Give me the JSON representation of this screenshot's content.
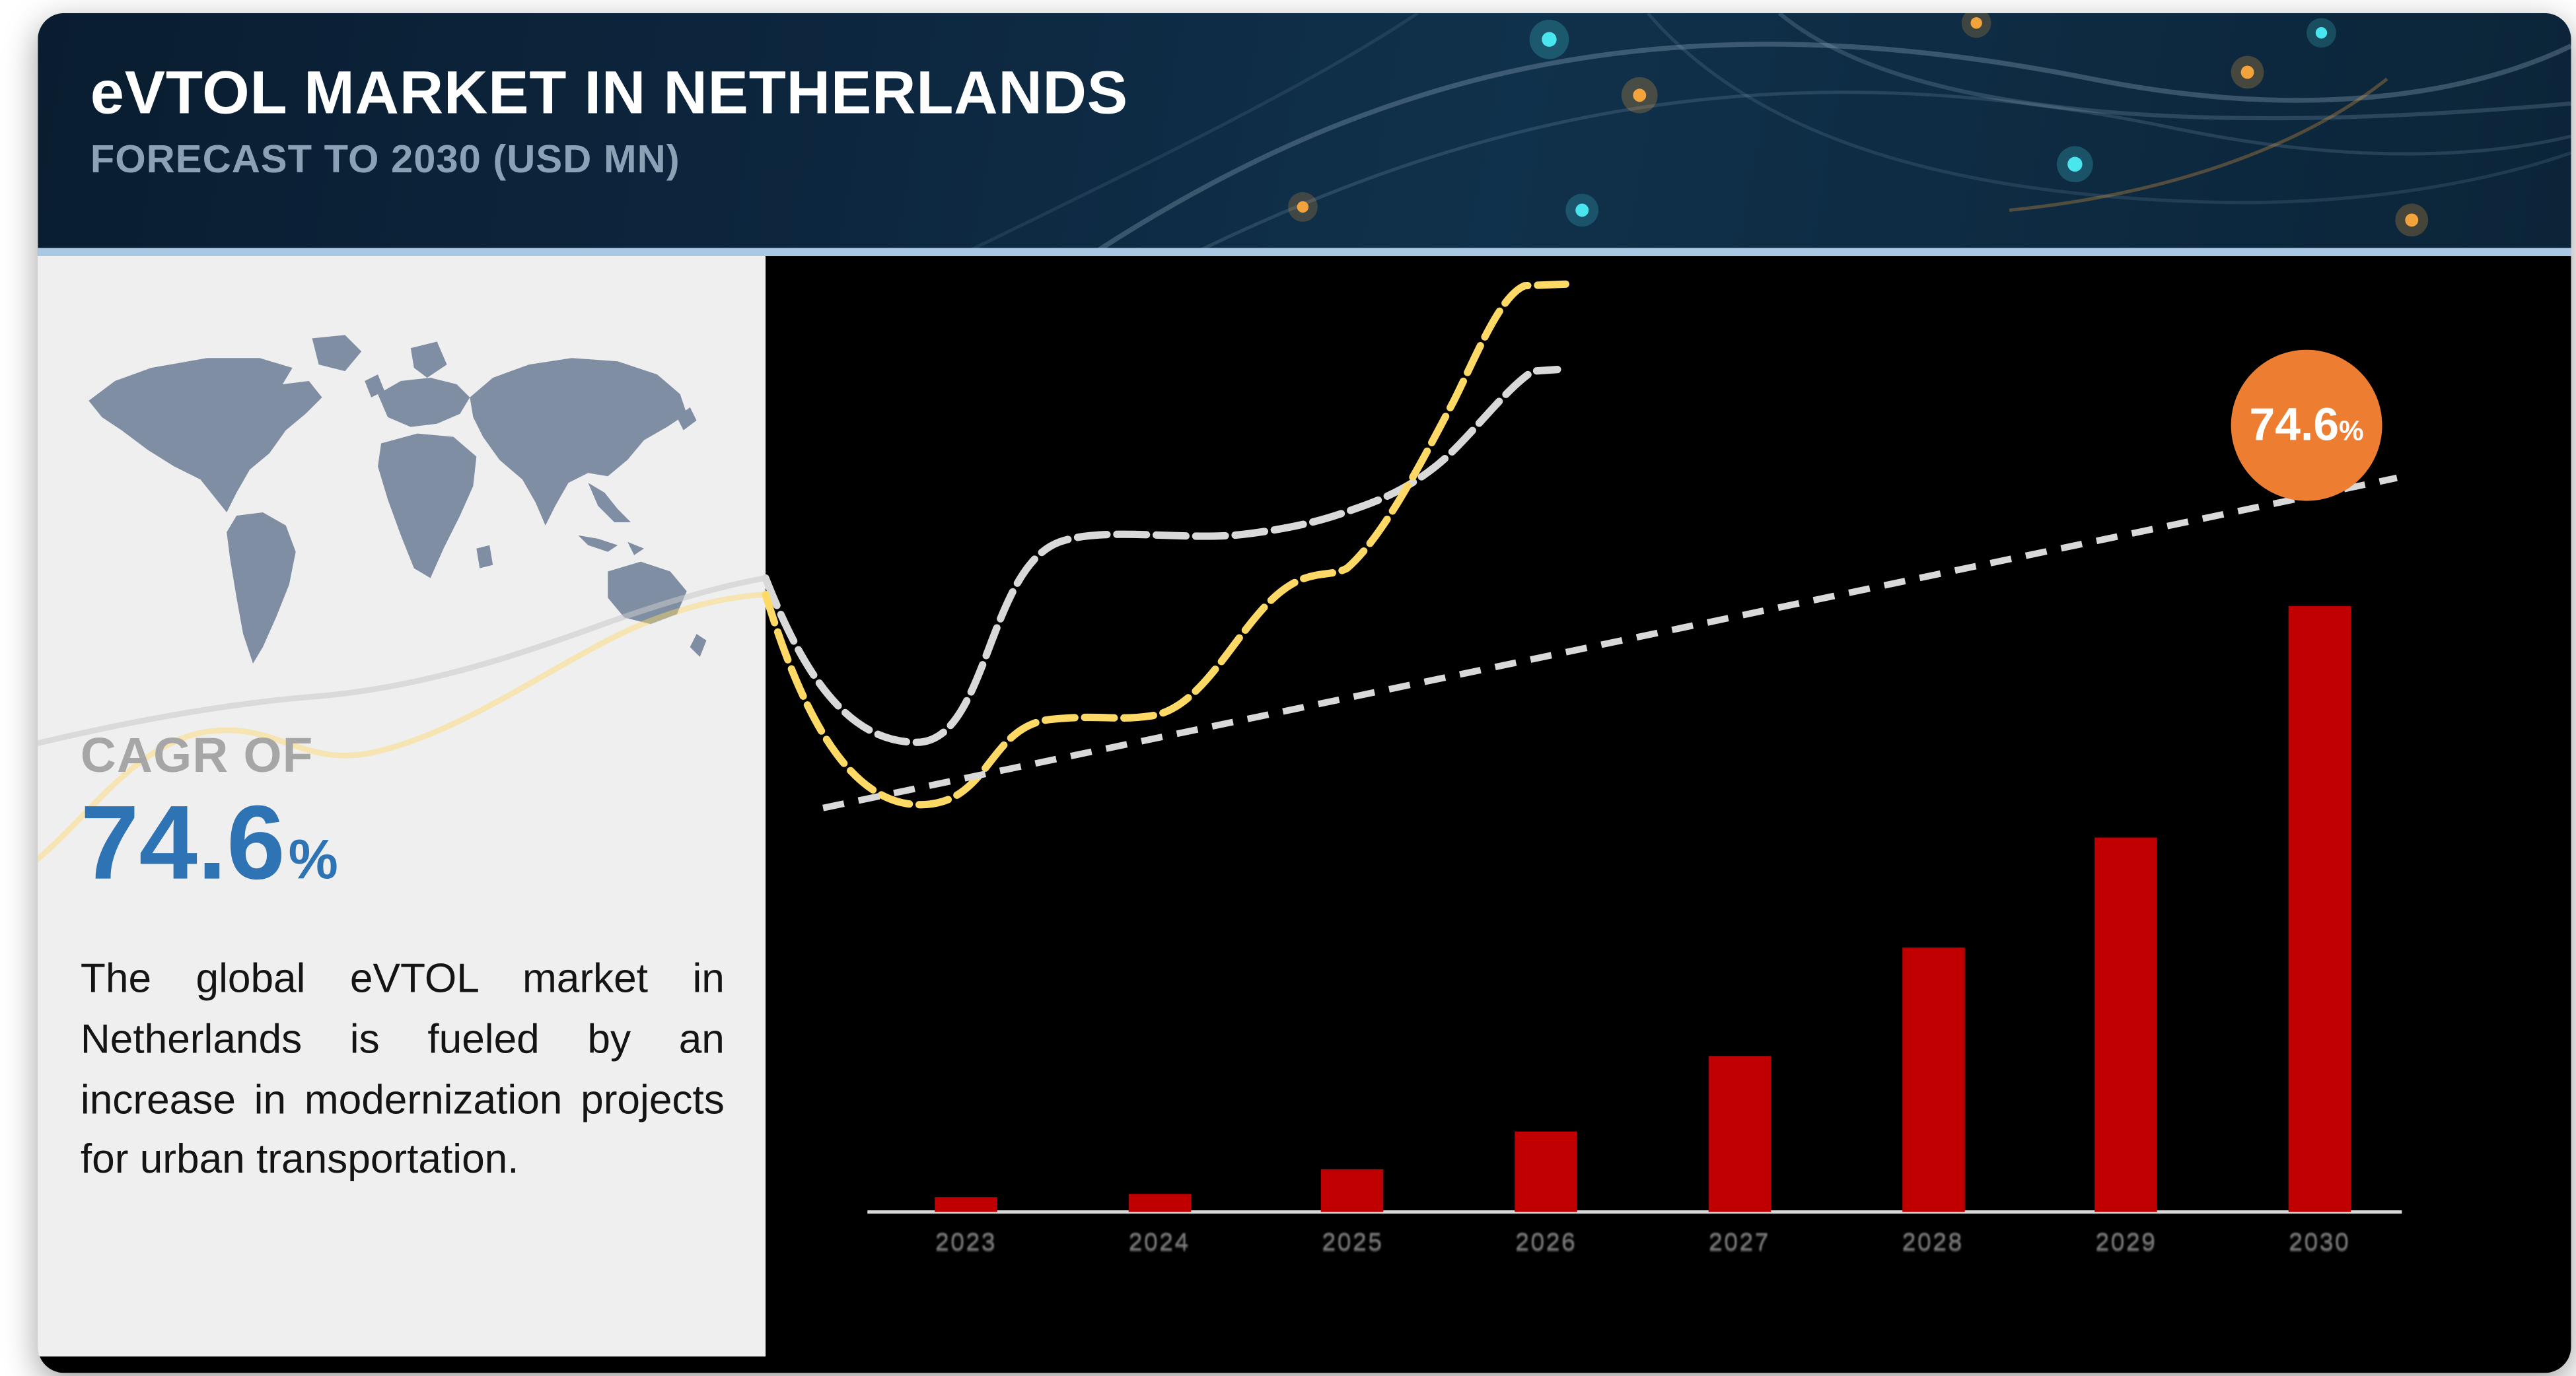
{
  "header": {
    "title": "eVTOL MARKET IN NETHERLANDS",
    "subtitle": "FORECAST TO 2030 (USD MN)"
  },
  "left_panel": {
    "cagr_label": "CAGR OF",
    "cagr_value": "74.6",
    "cagr_unit": "%",
    "description": "The global eVTOL market in Netherlands is fueled by an increase in modernization projects for urban transportation."
  },
  "callout": {
    "value": "74.6",
    "unit": "%"
  },
  "chart_data": {
    "type": "bar",
    "title": "eVTOL market in Netherlands forecast to 2030 (USD MN)",
    "categories": [
      "2023",
      "2024",
      "2025",
      "2026",
      "2027",
      "2028",
      "2029",
      "2030"
    ],
    "values": [
      9,
      11,
      26,
      49,
      95,
      161,
      228,
      369
    ],
    "ylim": [
      0,
      400
    ],
    "xlabel": "",
    "ylabel": "",
    "y_axis_visible": false,
    "grid": false,
    "legend": "none",
    "bar_color": "#c00000",
    "trend_line": {
      "style": "dashed",
      "color": "#d9d9d9",
      "annotation": "74.6%",
      "annotation_bubble_color": "#ed7d31"
    }
  },
  "colors": {
    "header_bg": "#0d2740",
    "header_strip": "#aac7e4",
    "accent_blue": "#2e74b5",
    "bar_red": "#c00000",
    "callout_orange": "#ed7d31",
    "gold_curve": "#ffd966",
    "gray_curve": "#d9d9d9",
    "left_panel_bg": "#efeff0",
    "chart_bg": "#000000",
    "map_fill": "#7f8ea3"
  }
}
